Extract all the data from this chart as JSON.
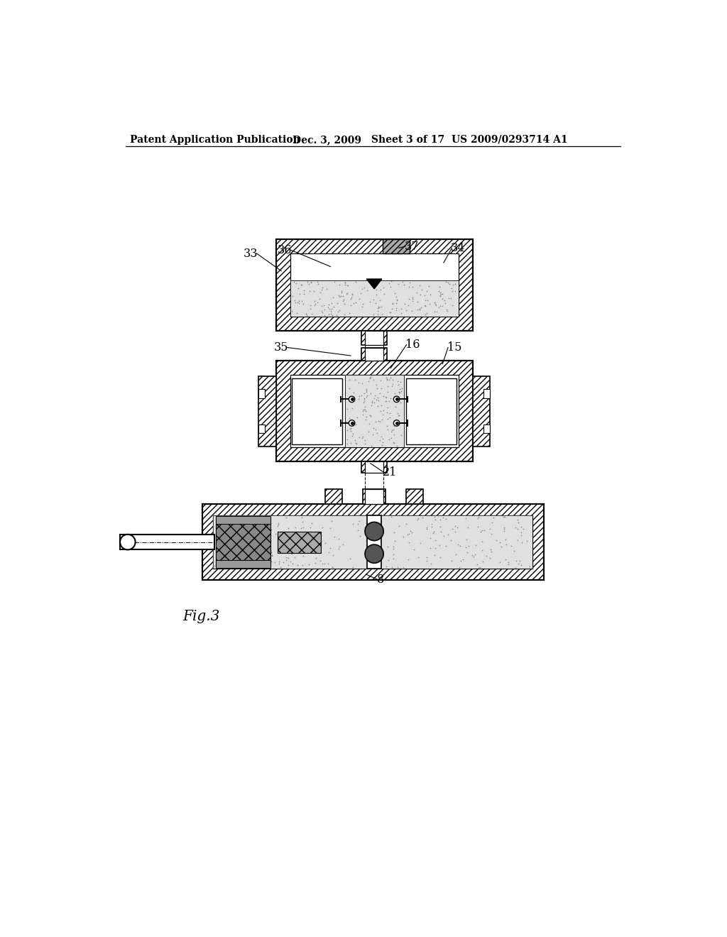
{
  "bg_color": "#ffffff",
  "header_bold": "Patent Application Publication",
  "header_date": "Dec. 3, 2009",
  "header_sheet": "Sheet 3 of 17",
  "header_patent": "US 2009/0293714 A1",
  "fig_label": "Fig.3",
  "lc": "#000000"
}
